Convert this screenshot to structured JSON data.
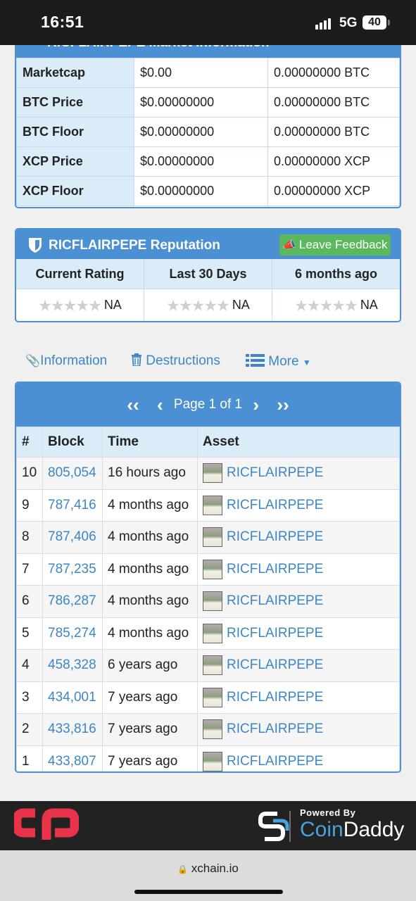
{
  "status_bar": {
    "time": "16:51",
    "network": "5G",
    "battery": "40"
  },
  "market": {
    "title": "RICFLAIRPEPE Market Information",
    "rows": [
      {
        "label": "Marketcap",
        "usd": "$0.00",
        "native": "0.00000000 BTC"
      },
      {
        "label": "BTC Price",
        "usd": "$0.00000000",
        "native": "0.00000000 BTC"
      },
      {
        "label": "BTC Floor",
        "usd": "$0.00000000",
        "native": "0.00000000 BTC"
      },
      {
        "label": "XCP Price",
        "usd": "$0.00000000",
        "native": "0.00000000 XCP"
      },
      {
        "label": "XCP Floor",
        "usd": "$0.00000000",
        "native": "0.00000000 XCP"
      }
    ]
  },
  "reputation": {
    "title": "RICFLAIRPEPE Reputation",
    "feedback_label": "Leave Feedback",
    "columns": [
      {
        "header": "Current Rating",
        "value": "NA"
      },
      {
        "header": "Last 30 Days",
        "value": "NA"
      },
      {
        "header": "6 months ago",
        "value": "NA"
      }
    ]
  },
  "tabs": {
    "information": "Information",
    "destructions": "Destructions",
    "more": "More"
  },
  "pager": {
    "text": "Page 1 of 1"
  },
  "history": {
    "headers": [
      "#",
      "Block",
      "Time",
      "Asset"
    ],
    "rows": [
      {
        "num": "10",
        "block": "805,054",
        "time": "16 hours ago",
        "asset": "RICFLAIRPEPE"
      },
      {
        "num": "9",
        "block": "787,416",
        "time": "4 months ago",
        "asset": "RICFLAIRPEPE"
      },
      {
        "num": "8",
        "block": "787,406",
        "time": "4 months ago",
        "asset": "RICFLAIRPEPE"
      },
      {
        "num": "7",
        "block": "787,235",
        "time": "4 months ago",
        "asset": "RICFLAIRPEPE"
      },
      {
        "num": "6",
        "block": "786,287",
        "time": "4 months ago",
        "asset": "RICFLAIRPEPE"
      },
      {
        "num": "5",
        "block": "785,274",
        "time": "4 months ago",
        "asset": "RICFLAIRPEPE"
      },
      {
        "num": "4",
        "block": "458,328",
        "time": "6 years ago",
        "asset": "RICFLAIRPEPE"
      },
      {
        "num": "3",
        "block": "434,001",
        "time": "7 years ago",
        "asset": "RICFLAIRPEPE"
      },
      {
        "num": "2",
        "block": "433,816",
        "time": "7 years ago",
        "asset": "RICFLAIRPEPE"
      },
      {
        "num": "1",
        "block": "433,807",
        "time": "7 years ago",
        "asset": "RICFLAIRPEPE"
      }
    ]
  },
  "footer": {
    "powered_by": "Powered By",
    "brand_coin": "Coin",
    "brand_daddy": "Daddy"
  },
  "url_bar": {
    "url": "xchain.io"
  },
  "colors": {
    "accent": "#4a90d2",
    "link": "#3d86c6",
    "header_cell": "#d9ecf8",
    "feedback": "#5cb85c",
    "logo_red": "#e8334a"
  }
}
